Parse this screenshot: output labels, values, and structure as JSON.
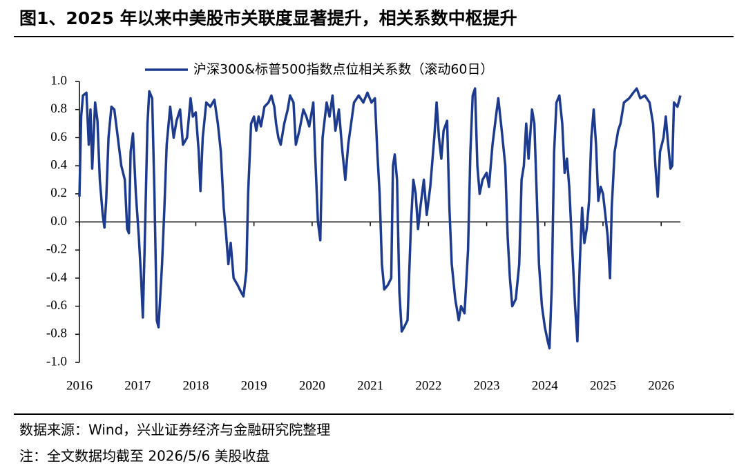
{
  "chart_data": {
    "type": "line",
    "title": "图1、2025 年以来中美股市关联度显著提升，相关系数中枢提升",
    "source": "数据来源：Wind，兴业证券经济与金融研究院整理",
    "note": "注：全文数据均截至 2026/5/6 美股收盘",
    "xlim": [
      2016,
      2026.33
    ],
    "xticks": [
      2016,
      2017,
      2018,
      2019,
      2020,
      2021,
      2022,
      2023,
      2024,
      2025,
      2026
    ],
    "ylim": [
      -1,
      1
    ],
    "yticks": [
      {
        "value": 1,
        "label": "1.0"
      },
      0.8,
      0.6,
      0.4,
      0.2,
      {
        "value": 0,
        "label": "0.0"
      },
      -0.2,
      -0.4,
      -0.6,
      -0.8,
      {
        "value": -1,
        "label": "-1.0"
      }
    ],
    "legend": "top",
    "x": [
      2016.0,
      2016.03,
      2016.06,
      2016.12,
      2016.16,
      2016.19,
      2016.22,
      2016.27,
      2016.31,
      2016.35,
      2016.4,
      2016.43,
      2016.46,
      2016.5,
      2016.55,
      2016.6,
      2016.66,
      2016.72,
      2016.78,
      2016.82,
      2016.85,
      2016.88,
      2016.92,
      2016.97,
      2017.02,
      2017.06,
      2017.09,
      2017.12,
      2017.17,
      2017.2,
      2017.25,
      2017.29,
      2017.33,
      2017.36,
      2017.42,
      2017.46,
      2017.5,
      2017.56,
      2017.62,
      2017.67,
      2017.73,
      2017.78,
      2017.85,
      2017.91,
      2017.95,
      2018.0,
      2018.05,
      2018.08,
      2018.12,
      2018.18,
      2018.25,
      2018.32,
      2018.38,
      2018.43,
      2018.48,
      2018.52,
      2018.56,
      2018.6,
      2018.65,
      2018.72,
      2018.78,
      2018.82,
      2018.87,
      2018.9,
      2018.95,
      2019.0,
      2019.04,
      2019.08,
      2019.12,
      2019.18,
      2019.25,
      2019.3,
      2019.35,
      2019.38,
      2019.42,
      2019.46,
      2019.52,
      2019.58,
      2019.62,
      2019.68,
      2019.72,
      2019.78,
      2019.85,
      2019.9,
      2019.95,
      2020.02,
      2020.05,
      2020.1,
      2020.14,
      2020.18,
      2020.25,
      2020.3,
      2020.35,
      2020.4,
      2020.46,
      2020.52,
      2020.57,
      2020.62,
      2020.67,
      2020.72,
      2020.8,
      2020.88,
      2020.95,
      2021.02,
      2021.08,
      2021.12,
      2021.16,
      2021.2,
      2021.24,
      2021.3,
      2021.36,
      2021.39,
      2021.42,
      2021.46,
      2021.5,
      2021.54,
      2021.58,
      2021.64,
      2021.7,
      2021.74,
      2021.78,
      2021.82,
      2021.86,
      2021.92,
      2021.97,
      2022.03,
      2022.1,
      2022.14,
      2022.18,
      2022.22,
      2022.26,
      2022.32,
      2022.36,
      2022.4,
      2022.46,
      2022.52,
      2022.56,
      2022.62,
      2022.68,
      2022.72,
      2022.76,
      2022.8,
      2022.84,
      2022.88,
      2022.93,
      2023.0,
      2023.04,
      2023.1,
      2023.16,
      2023.2,
      2023.26,
      2023.32,
      2023.36,
      2023.4,
      2023.44,
      2023.5,
      2023.56,
      2023.6,
      2023.64,
      2023.68,
      2023.72,
      2023.78,
      2023.82,
      2023.86,
      2023.9,
      2023.95,
      2024.0,
      2024.05,
      2024.08,
      2024.12,
      2024.16,
      2024.2,
      2024.25,
      2024.3,
      2024.34,
      2024.38,
      2024.42,
      2024.46,
      2024.52,
      2024.56,
      2024.6,
      2024.64,
      2024.68,
      2024.72,
      2024.76,
      2024.8,
      2024.84,
      2024.88,
      2024.92,
      2024.96,
      2025.0,
      2025.04,
      2025.08,
      2025.12,
      2025.15,
      2025.2,
      2025.26,
      2025.3,
      2025.36,
      2025.45,
      2025.52,
      2025.58,
      2025.64,
      2025.72,
      2025.8,
      2025.86,
      2025.9,
      2025.94,
      2025.98,
      2026.04,
      2026.08,
      2026.12,
      2026.16,
      2026.19,
      2026.22,
      2026.28,
      2026.33
    ],
    "series": [
      {
        "name": "沪深300&标普500指数点位相关系数（滚动60日）",
        "color": "#1c3a8e",
        "values": [
          0.18,
          0.75,
          0.9,
          0.92,
          0.55,
          0.8,
          0.38,
          0.85,
          0.72,
          0.3,
          0.05,
          -0.04,
          0.15,
          0.6,
          0.82,
          0.8,
          0.6,
          0.4,
          0.3,
          -0.05,
          -0.08,
          0.5,
          0.63,
          0.2,
          -0.1,
          -0.4,
          -0.68,
          -0.2,
          0.7,
          0.93,
          0.88,
          0.2,
          -0.7,
          -0.75,
          -0.3,
          0.1,
          0.55,
          0.82,
          0.6,
          0.72,
          0.8,
          0.55,
          0.6,
          0.88,
          0.75,
          0.78,
          0.5,
          0.22,
          0.6,
          0.85,
          0.82,
          0.87,
          0.7,
          0.5,
          0.1,
          -0.08,
          -0.3,
          -0.15,
          -0.4,
          -0.45,
          -0.5,
          -0.53,
          -0.35,
          0.2,
          0.7,
          0.75,
          0.65,
          0.75,
          0.68,
          0.82,
          0.85,
          0.9,
          0.82,
          0.7,
          0.6,
          0.55,
          0.7,
          0.8,
          0.9,
          0.85,
          0.55,
          0.65,
          0.8,
          0.75,
          0.68,
          0.85,
          0.5,
          0.0,
          -0.13,
          0.6,
          0.85,
          0.75,
          0.9,
          0.65,
          0.8,
          0.5,
          0.3,
          0.55,
          0.7,
          0.85,
          0.9,
          0.85,
          0.92,
          0.85,
          0.88,
          0.5,
          0.2,
          -0.3,
          -0.48,
          -0.45,
          -0.4,
          0.4,
          0.48,
          0.3,
          -0.5,
          -0.78,
          -0.75,
          -0.7,
          0.0,
          0.3,
          0.2,
          -0.05,
          0.1,
          0.3,
          0.05,
          0.25,
          0.6,
          0.85,
          0.6,
          0.45,
          0.65,
          0.72,
          0.1,
          -0.3,
          -0.55,
          -0.7,
          -0.6,
          -0.65,
          -0.2,
          0.5,
          0.9,
          0.95,
          0.4,
          0.2,
          0.3,
          0.35,
          0.25,
          0.55,
          0.75,
          0.88,
          0.65,
          0.4,
          -0.1,
          -0.4,
          -0.6,
          -0.55,
          -0.3,
          0.3,
          0.4,
          0.7,
          0.45,
          0.8,
          0.7,
          0.2,
          -0.3,
          -0.6,
          -0.75,
          -0.85,
          -0.9,
          -0.45,
          0.5,
          0.85,
          0.9,
          0.7,
          0.35,
          0.45,
          0.25,
          -0.1,
          -0.6,
          -0.85,
          -0.3,
          0.1,
          -0.15,
          -0.05,
          0.15,
          0.6,
          0.8,
          0.55,
          0.15,
          0.25,
          0.2,
          0.05,
          -0.1,
          -0.4,
          0.1,
          0.5,
          0.65,
          0.7,
          0.85,
          0.88,
          0.92,
          0.95,
          0.88,
          0.9,
          0.85,
          0.7,
          0.4,
          0.18,
          0.5,
          0.6,
          0.75,
          0.55,
          0.38,
          0.4,
          0.85,
          0.82,
          0.9
        ]
      }
    ]
  }
}
